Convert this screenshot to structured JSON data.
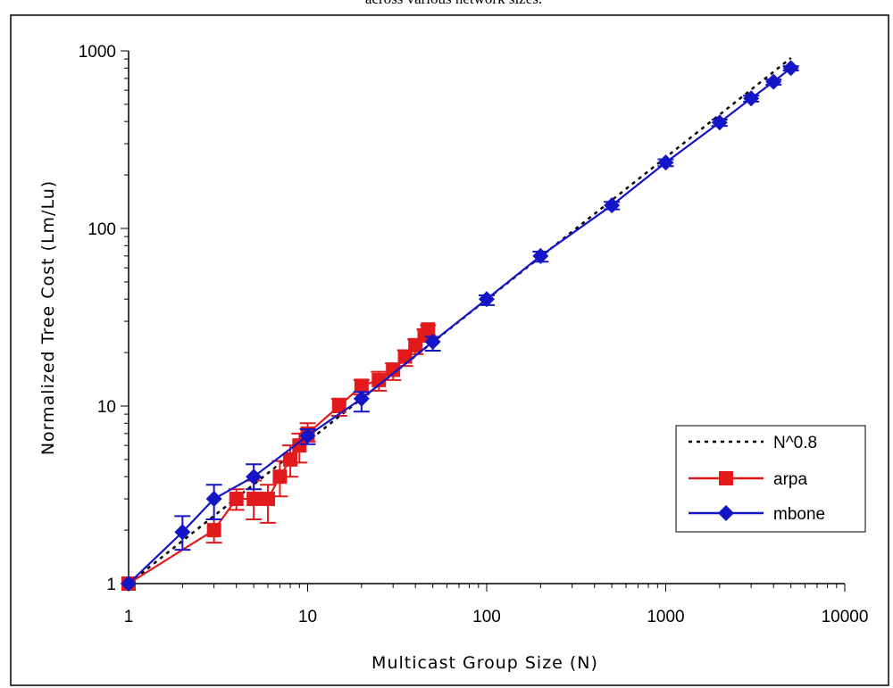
{
  "caption": "across various network sizes.",
  "chart_data": {
    "type": "line",
    "title": "",
    "xlabel": "Multicast Group Size (N)",
    "ylabel": "Normalized Tree Cost (Lm/Lu)",
    "x_scale": "log",
    "y_scale": "log",
    "xlim": [
      1,
      10000
    ],
    "ylim": [
      1,
      1000
    ],
    "x_ticks": [
      "1",
      "10",
      "100",
      "1000",
      "10000"
    ],
    "y_ticks": [
      "1",
      "10",
      "100",
      "1000"
    ],
    "grid": false,
    "legend_position": "bottom-right",
    "series": [
      {
        "name": "N^0.8",
        "style": "dotted",
        "color": "#000000",
        "x": [
          1,
          2,
          5,
          10,
          20,
          50,
          100,
          200,
          500,
          1000,
          2000,
          5000
        ],
        "y": [
          1,
          1.74,
          3.62,
          6.31,
          10.99,
          22.9,
          39.8,
          69.3,
          144.3,
          251.2,
          437.3,
          911.1
        ]
      },
      {
        "name": "arpa",
        "marker": "square",
        "color": "#e31a1c",
        "x": [
          1,
          3,
          4,
          5,
          6,
          7,
          8,
          9,
          10,
          15,
          20,
          25,
          30,
          35,
          40,
          45,
          47
        ],
        "y": [
          1.0,
          2.0,
          3.0,
          3.0,
          3.0,
          4.0,
          5.0,
          6.0,
          7.0,
          10.0,
          13.0,
          14.0,
          16.0,
          19.0,
          22.0,
          25.0,
          27.0
        ],
        "err_low": [
          1.0,
          1.7,
          2.6,
          2.3,
          2.2,
          3.1,
          4.0,
          4.8,
          6.3,
          8.8,
          11.6,
          12.2,
          14.0,
          16.8,
          19.6,
          23.0,
          25.0
        ],
        "err_high": [
          1.0,
          2.3,
          3.4,
          3.8,
          3.6,
          4.9,
          6.0,
          7.0,
          8.0,
          11.0,
          14.0,
          15.6,
          17.4,
          20.6,
          23.7,
          27.0,
          28.5
        ]
      },
      {
        "name": "mbone",
        "marker": "diamond",
        "color": "#1515c8",
        "x": [
          1,
          2,
          3,
          5,
          10,
          20,
          50,
          100,
          200,
          500,
          1000,
          2000,
          3000,
          4000,
          5000
        ],
        "y": [
          1.0,
          1.95,
          3.0,
          4.0,
          6.8,
          11.0,
          23.0,
          40.0,
          70.0,
          135.0,
          235.0,
          395.0,
          540.0,
          670.0,
          800.0
        ],
        "err_low": [
          1.0,
          1.55,
          2.3,
          3.4,
          6.1,
          9.3,
          20.5,
          37.0,
          65.0,
          128.0,
          224.0,
          378.0,
          518.0,
          645.0,
          775.0
        ],
        "err_high": [
          1.0,
          2.4,
          3.6,
          4.7,
          7.4,
          12.0,
          24.5,
          42.0,
          74.0,
          141.0,
          245.0,
          410.0,
          560.0,
          690.0,
          820.0
        ]
      }
    ]
  }
}
